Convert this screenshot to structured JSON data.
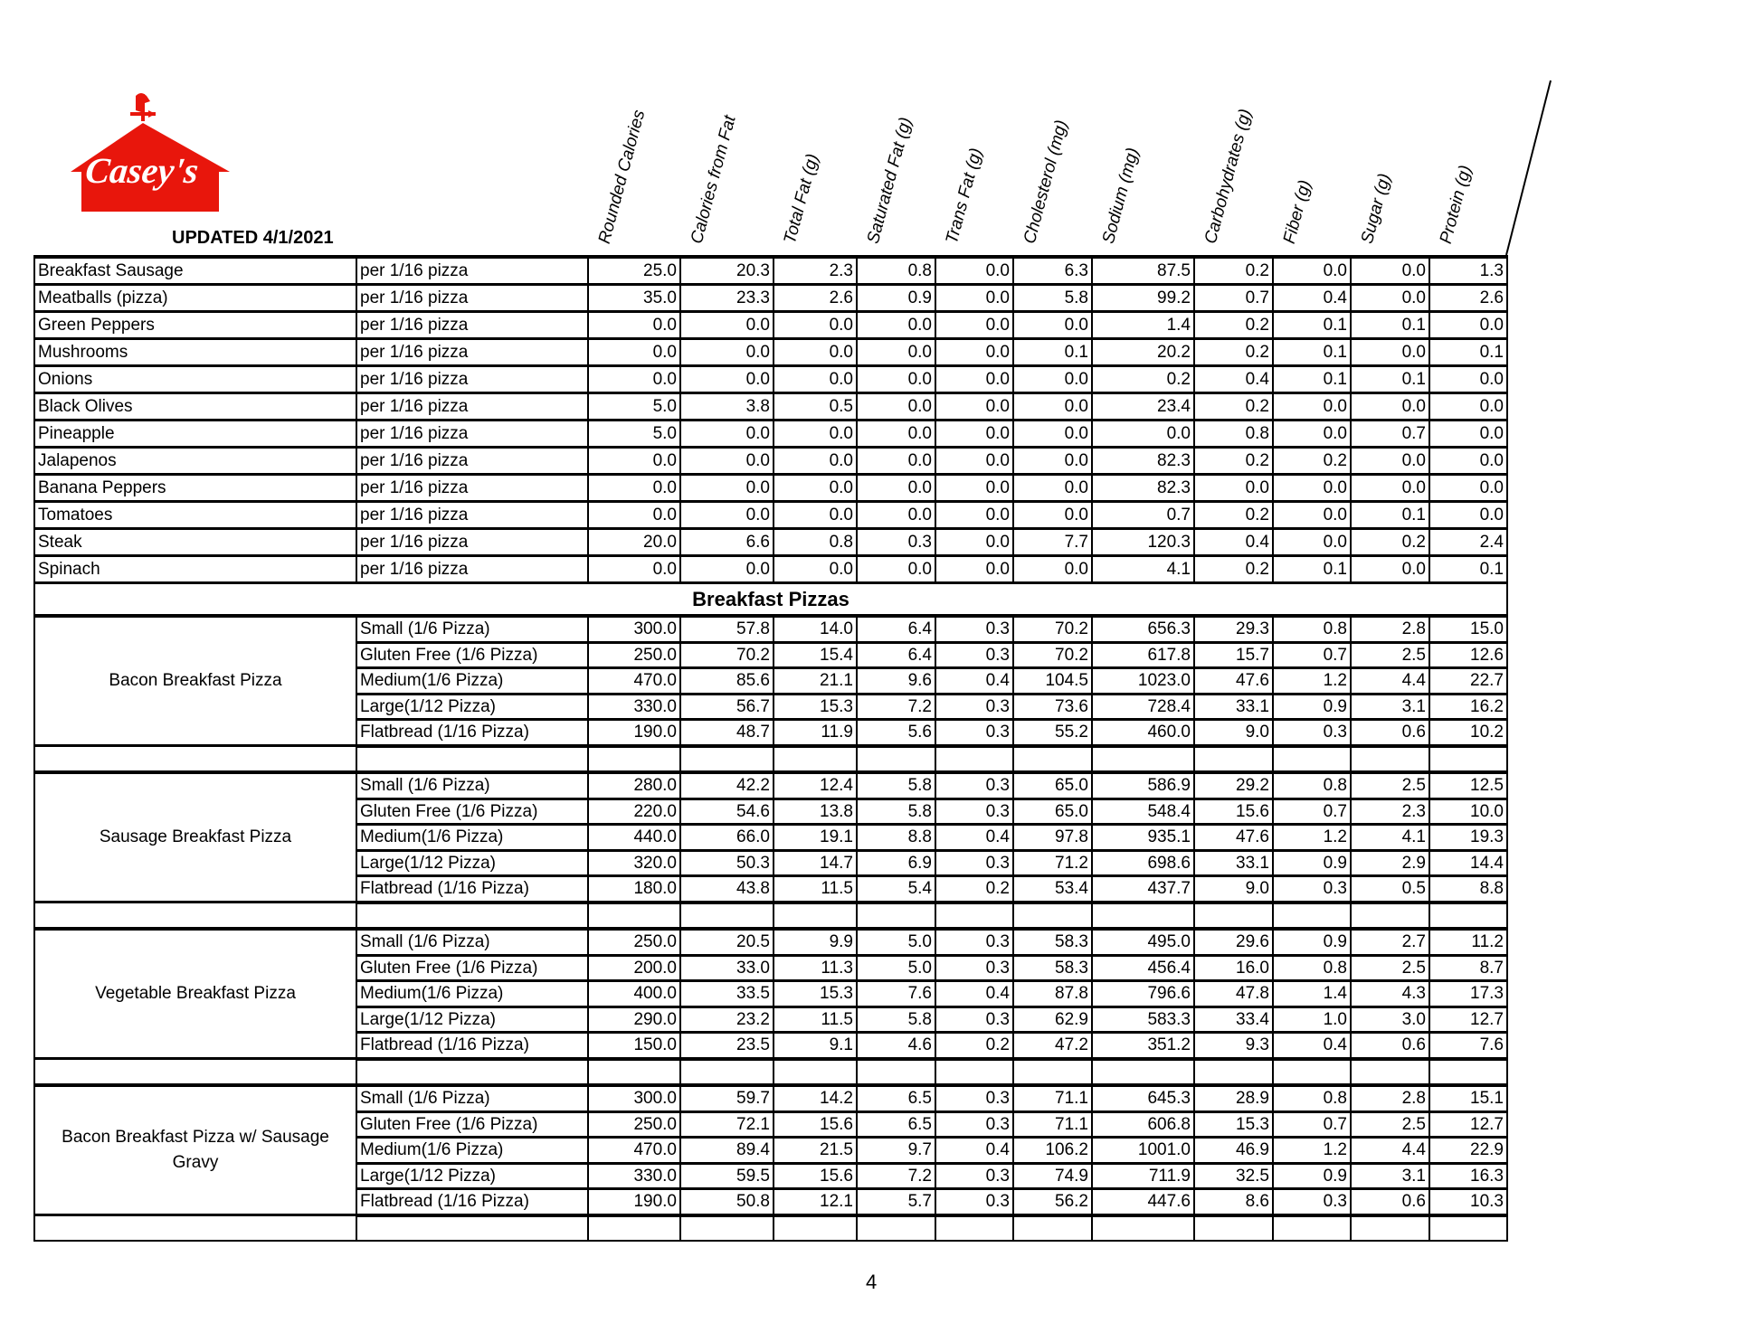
{
  "header": {
    "logo_text": "Casey's",
    "updated": "UPDATED 4/1/2021",
    "columns": [
      "Rounded Calories",
      "Calories from Fat",
      "Total Fat (g)",
      "Saturated Fat (g)",
      "Trans Fat (g)",
      "Cholesterol (mg)",
      "Sodium (mg)",
      "Carbohydrates (g)",
      "Fiber (g)",
      "Sugar (g)",
      "Protein (g)"
    ]
  },
  "colors": {
    "brand_red": "#e8160c",
    "text": "#000000"
  },
  "toppings": [
    {
      "name": "Breakfast Sausage",
      "serving": "per 1/16 pizza",
      "values": [
        "25.0",
        "20.3",
        "2.3",
        "0.8",
        "0.0",
        "6.3",
        "87.5",
        "0.2",
        "0.0",
        "0.0",
        "1.3"
      ]
    },
    {
      "name": "Meatballs (pizza)",
      "serving": "per 1/16 pizza",
      "values": [
        "35.0",
        "23.3",
        "2.6",
        "0.9",
        "0.0",
        "5.8",
        "99.2",
        "0.7",
        "0.4",
        "0.0",
        "2.6"
      ]
    },
    {
      "name": "Green Peppers",
      "serving": "per 1/16 pizza",
      "values": [
        "0.0",
        "0.0",
        "0.0",
        "0.0",
        "0.0",
        "0.0",
        "1.4",
        "0.2",
        "0.1",
        "0.1",
        "0.0"
      ]
    },
    {
      "name": "Mushrooms",
      "serving": "per 1/16 pizza",
      "values": [
        "0.0",
        "0.0",
        "0.0",
        "0.0",
        "0.0",
        "0.1",
        "20.2",
        "0.2",
        "0.1",
        "0.0",
        "0.1"
      ]
    },
    {
      "name": "Onions",
      "serving": "per 1/16 pizza",
      "values": [
        "0.0",
        "0.0",
        "0.0",
        "0.0",
        "0.0",
        "0.0",
        "0.2",
        "0.4",
        "0.1",
        "0.1",
        "0.0"
      ]
    },
    {
      "name": "Black Olives",
      "serving": "per 1/16 pizza",
      "values": [
        "5.0",
        "3.8",
        "0.5",
        "0.0",
        "0.0",
        "0.0",
        "23.4",
        "0.2",
        "0.0",
        "0.0",
        "0.0"
      ]
    },
    {
      "name": "Pineapple",
      "serving": "per 1/16 pizza",
      "values": [
        "5.0",
        "0.0",
        "0.0",
        "0.0",
        "0.0",
        "0.0",
        "0.0",
        "0.8",
        "0.0",
        "0.7",
        "0.0"
      ]
    },
    {
      "name": "Jalapenos",
      "serving": "per 1/16 pizza",
      "values": [
        "0.0",
        "0.0",
        "0.0",
        "0.0",
        "0.0",
        "0.0",
        "82.3",
        "0.2",
        "0.2",
        "0.0",
        "0.0"
      ]
    },
    {
      "name": "Banana Peppers",
      "serving": "per 1/16 pizza",
      "values": [
        "0.0",
        "0.0",
        "0.0",
        "0.0",
        "0.0",
        "0.0",
        "82.3",
        "0.0",
        "0.0",
        "0.0",
        "0.0"
      ]
    },
    {
      "name": "Tomatoes",
      "serving": "per 1/16 pizza",
      "values": [
        "0.0",
        "0.0",
        "0.0",
        "0.0",
        "0.0",
        "0.0",
        "0.7",
        "0.2",
        "0.0",
        "0.1",
        "0.0"
      ]
    },
    {
      "name": "Steak",
      "serving": "per 1/16 pizza",
      "values": [
        "20.0",
        "6.6",
        "0.8",
        "0.3",
        "0.0",
        "7.7",
        "120.3",
        "0.4",
        "0.0",
        "0.2",
        "2.4"
      ]
    },
    {
      "name": "Spinach",
      "serving": "per 1/16 pizza",
      "values": [
        "0.0",
        "0.0",
        "0.0",
        "0.0",
        "0.0",
        "0.0",
        "4.1",
        "0.2",
        "0.1",
        "0.0",
        "0.1"
      ]
    }
  ],
  "section_title": "Breakfast Pizzas",
  "groups": [
    {
      "name": "Bacon Breakfast Pizza",
      "rows": [
        {
          "size": "Small (1/6 Pizza)",
          "values": [
            "300.0",
            "57.8",
            "14.0",
            "6.4",
            "0.3",
            "70.2",
            "656.3",
            "29.3",
            "0.8",
            "2.8",
            "15.0"
          ]
        },
        {
          "size": "Gluten Free (1/6 Pizza)",
          "values": [
            "250.0",
            "70.2",
            "15.4",
            "6.4",
            "0.3",
            "70.2",
            "617.8",
            "15.7",
            "0.7",
            "2.5",
            "12.6"
          ]
        },
        {
          "size": "Medium(1/6 Pizza)",
          "values": [
            "470.0",
            "85.6",
            "21.1",
            "9.6",
            "0.4",
            "104.5",
            "1023.0",
            "47.6",
            "1.2",
            "4.4",
            "22.7"
          ]
        },
        {
          "size": "Large(1/12 Pizza)",
          "values": [
            "330.0",
            "56.7",
            "15.3",
            "7.2",
            "0.3",
            "73.6",
            "728.4",
            "33.1",
            "0.9",
            "3.1",
            "16.2"
          ]
        },
        {
          "size": "Flatbread (1/16 Pizza)",
          "values": [
            "190.0",
            "48.7",
            "11.9",
            "5.6",
            "0.3",
            "55.2",
            "460.0",
            "9.0",
            "0.3",
            "0.6",
            "10.2"
          ]
        }
      ]
    },
    {
      "name": "Sausage Breakfast Pizza",
      "rows": [
        {
          "size": "Small (1/6 Pizza)",
          "values": [
            "280.0",
            "42.2",
            "12.4",
            "5.8",
            "0.3",
            "65.0",
            "586.9",
            "29.2",
            "0.8",
            "2.5",
            "12.5"
          ]
        },
        {
          "size": "Gluten Free (1/6 Pizza)",
          "values": [
            "220.0",
            "54.6",
            "13.8",
            "5.8",
            "0.3",
            "65.0",
            "548.4",
            "15.6",
            "0.7",
            "2.3",
            "10.0"
          ]
        },
        {
          "size": "Medium(1/6 Pizza)",
          "values": [
            "440.0",
            "66.0",
            "19.1",
            "8.8",
            "0.4",
            "97.8",
            "935.1",
            "47.6",
            "1.2",
            "4.1",
            "19.3"
          ]
        },
        {
          "size": "Large(1/12 Pizza)",
          "values": [
            "320.0",
            "50.3",
            "14.7",
            "6.9",
            "0.3",
            "71.2",
            "698.6",
            "33.1",
            "0.9",
            "2.9",
            "14.4"
          ]
        },
        {
          "size": "Flatbread (1/16 Pizza)",
          "values": [
            "180.0",
            "43.8",
            "11.5",
            "5.4",
            "0.2",
            "53.4",
            "437.7",
            "9.0",
            "0.3",
            "0.5",
            "8.8"
          ]
        }
      ]
    },
    {
      "name": "Vegetable Breakfast Pizza",
      "rows": [
        {
          "size": "Small (1/6 Pizza)",
          "values": [
            "250.0",
            "20.5",
            "9.9",
            "5.0",
            "0.3",
            "58.3",
            "495.0",
            "29.6",
            "0.9",
            "2.7",
            "11.2"
          ]
        },
        {
          "size": "Gluten Free (1/6 Pizza)",
          "values": [
            "200.0",
            "33.0",
            "11.3",
            "5.0",
            "0.3",
            "58.3",
            "456.4",
            "16.0",
            "0.8",
            "2.5",
            "8.7"
          ]
        },
        {
          "size": "Medium(1/6 Pizza)",
          "values": [
            "400.0",
            "33.5",
            "15.3",
            "7.6",
            "0.4",
            "87.8",
            "796.6",
            "47.8",
            "1.4",
            "4.3",
            "17.3"
          ]
        },
        {
          "size": "Large(1/12 Pizza)",
          "values": [
            "290.0",
            "23.2",
            "11.5",
            "5.8",
            "0.3",
            "62.9",
            "583.3",
            "33.4",
            "1.0",
            "3.0",
            "12.7"
          ]
        },
        {
          "size": "Flatbread (1/16 Pizza)",
          "values": [
            "150.0",
            "23.5",
            "9.1",
            "4.6",
            "0.2",
            "47.2",
            "351.2",
            "9.3",
            "0.4",
            "0.6",
            "7.6"
          ]
        }
      ]
    },
    {
      "name": "Bacon Breakfast Pizza w/ Sausage Gravy",
      "rows": [
        {
          "size": "Small (1/6 Pizza)",
          "values": [
            "300.0",
            "59.7",
            "14.2",
            "6.5",
            "0.3",
            "71.1",
            "645.3",
            "28.9",
            "0.8",
            "2.8",
            "15.1"
          ]
        },
        {
          "size": "Gluten Free (1/6 Pizza)",
          "values": [
            "250.0",
            "72.1",
            "15.6",
            "6.5",
            "0.3",
            "71.1",
            "606.8",
            "15.3",
            "0.7",
            "2.5",
            "12.7"
          ]
        },
        {
          "size": "Medium(1/6 Pizza)",
          "values": [
            "470.0",
            "89.4",
            "21.5",
            "9.7",
            "0.4",
            "106.2",
            "1001.0",
            "46.9",
            "1.2",
            "4.4",
            "22.9"
          ]
        },
        {
          "size": "Large(1/12 Pizza)",
          "values": [
            "330.0",
            "59.5",
            "15.6",
            "7.2",
            "0.3",
            "74.9",
            "711.9",
            "32.5",
            "0.9",
            "3.1",
            "16.3"
          ]
        },
        {
          "size": "Flatbread (1/16 Pizza)",
          "values": [
            "190.0",
            "50.8",
            "12.1",
            "5.7",
            "0.3",
            "56.2",
            "447.6",
            "8.6",
            "0.3",
            "0.6",
            "10.3"
          ]
        }
      ]
    }
  ],
  "page_number": "4"
}
